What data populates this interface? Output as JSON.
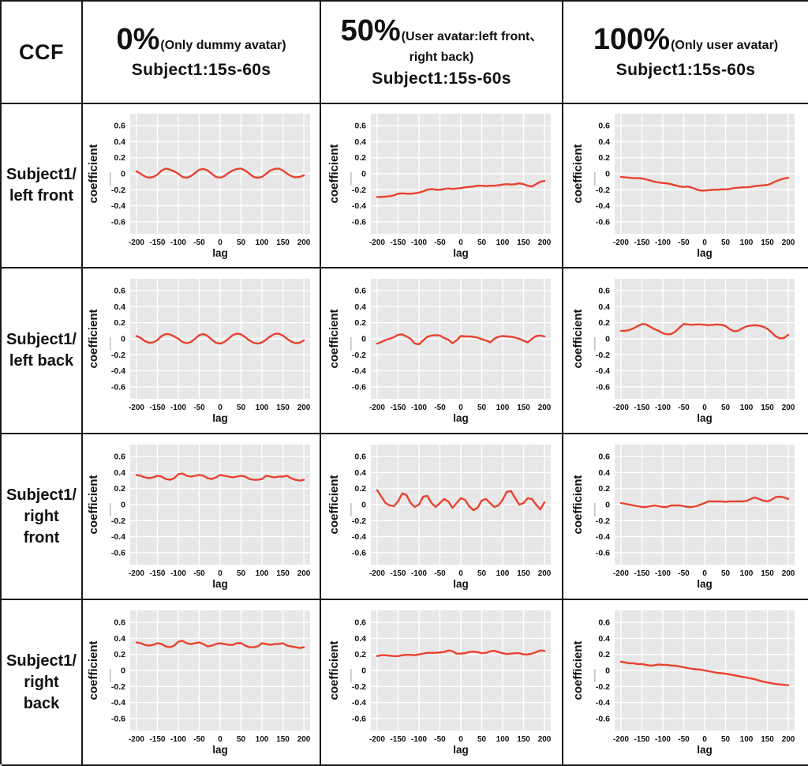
{
  "table": {
    "corner_label": "CCF",
    "columns": [
      {
        "percent": "0%",
        "condition_lines": [
          "(Only dummy avatar)"
        ],
        "subtitle": "Subject1:15s-60s"
      },
      {
        "percent": "50%",
        "condition_lines": [
          "(User avatar:left front、",
          "right back)"
        ],
        "subtitle": "Subject1:15s-60s"
      },
      {
        "percent": "100%",
        "condition_lines": [
          "(Only user avatar)"
        ],
        "subtitle": "Subject1:15s-60s"
      }
    ],
    "rows": [
      {
        "lines": [
          "Subject1/",
          "left front"
        ]
      },
      {
        "lines": [
          "Subject1/",
          "left back"
        ]
      },
      {
        "lines": [
          "Subject1/",
          "right",
          "front"
        ]
      },
      {
        "lines": [
          "Subject1/",
          "right",
          "back"
        ]
      }
    ]
  },
  "chart_data": {
    "type": "line",
    "xlabel": "lag",
    "ylabel": "coefficient",
    "xlim": [
      -215,
      215
    ],
    "ylim": [
      -0.75,
      0.75
    ],
    "xticks": [
      -200,
      -150,
      -100,
      -50,
      0,
      50,
      100,
      150,
      200
    ],
    "yticks": [
      0.6,
      0.4,
      0.2,
      0,
      -0.2,
      -0.4,
      -0.6
    ],
    "grid": true,
    "legend": "none",
    "line_color": "#e8422f",
    "plot_bg": "#e7e7e7",
    "grid_color": "#ffffff",
    "lag_start": -200,
    "lag_step": 10,
    "charts": [
      {
        "row": "Subject1/left front",
        "column": "0% (Only dummy avatar)",
        "values": [
          0.03,
          0.0,
          -0.035,
          -0.05,
          -0.04,
          -0.01,
          0.04,
          0.065,
          0.05,
          0.03,
          0.0,
          -0.04,
          -0.05,
          -0.03,
          0.01,
          0.05,
          0.06,
          0.04,
          0.0,
          -0.04,
          -0.05,
          -0.03,
          0.01,
          0.04,
          0.06,
          0.065,
          0.04,
          0.0,
          -0.04,
          -0.05,
          -0.04,
          0.0,
          0.04,
          0.06,
          0.065,
          0.04,
          0.0,
          -0.03,
          -0.045,
          -0.04,
          -0.02
        ]
      },
      {
        "row": "Subject1/left front",
        "column": "50% (User avatar:left front、right back)",
        "values": [
          -0.29,
          -0.29,
          -0.285,
          -0.28,
          -0.27,
          -0.25,
          -0.245,
          -0.25,
          -0.25,
          -0.245,
          -0.235,
          -0.22,
          -0.2,
          -0.19,
          -0.2,
          -0.2,
          -0.19,
          -0.185,
          -0.19,
          -0.185,
          -0.18,
          -0.17,
          -0.165,
          -0.16,
          -0.15,
          -0.15,
          -0.155,
          -0.15,
          -0.15,
          -0.145,
          -0.135,
          -0.13,
          -0.135,
          -0.13,
          -0.12,
          -0.13,
          -0.15,
          -0.16,
          -0.13,
          -0.1,
          -0.09
        ]
      },
      {
        "row": "Subject1/left front",
        "column": "100% (Only user avatar)",
        "values": [
          -0.04,
          -0.045,
          -0.05,
          -0.055,
          -0.055,
          -0.06,
          -0.07,
          -0.085,
          -0.1,
          -0.11,
          -0.115,
          -0.12,
          -0.13,
          -0.145,
          -0.16,
          -0.165,
          -0.16,
          -0.175,
          -0.195,
          -0.21,
          -0.21,
          -0.205,
          -0.2,
          -0.2,
          -0.195,
          -0.195,
          -0.19,
          -0.18,
          -0.175,
          -0.17,
          -0.17,
          -0.165,
          -0.155,
          -0.15,
          -0.145,
          -0.14,
          -0.12,
          -0.095,
          -0.075,
          -0.06,
          -0.05
        ]
      },
      {
        "row": "Subject1/left back",
        "column": "0% (Only dummy avatar)",
        "values": [
          0.035,
          0.01,
          -0.03,
          -0.05,
          -0.045,
          -0.015,
          0.035,
          0.06,
          0.055,
          0.03,
          0.0,
          -0.04,
          -0.055,
          -0.04,
          0.0,
          0.045,
          0.06,
          0.035,
          -0.01,
          -0.05,
          -0.06,
          -0.04,
          0.0,
          0.045,
          0.065,
          0.055,
          0.02,
          -0.02,
          -0.05,
          -0.06,
          -0.045,
          -0.01,
          0.03,
          0.06,
          0.065,
          0.04,
          0.0,
          -0.035,
          -0.055,
          -0.05,
          -0.02
        ]
      },
      {
        "row": "Subject1/left back",
        "column": "50% (User avatar:left front、right back)",
        "values": [
          -0.06,
          -0.04,
          -0.015,
          0.0,
          0.02,
          0.05,
          0.055,
          0.03,
          0.0,
          -0.06,
          -0.07,
          -0.02,
          0.025,
          0.04,
          0.045,
          0.04,
          0.01,
          -0.01,
          -0.055,
          -0.02,
          0.035,
          0.03,
          0.03,
          0.025,
          0.015,
          -0.005,
          -0.02,
          -0.045,
          0.0,
          0.025,
          0.035,
          0.03,
          0.025,
          0.015,
          0.0,
          -0.025,
          -0.045,
          0.0,
          0.035,
          0.04,
          0.03
        ]
      },
      {
        "row": "Subject1/left back",
        "column": "100% (Only user avatar)",
        "values": [
          0.1,
          0.1,
          0.11,
          0.13,
          0.16,
          0.185,
          0.18,
          0.15,
          0.12,
          0.1,
          0.07,
          0.055,
          0.06,
          0.09,
          0.14,
          0.185,
          0.18,
          0.175,
          0.18,
          0.18,
          0.175,
          0.17,
          0.175,
          0.18,
          0.175,
          0.16,
          0.12,
          0.095,
          0.1,
          0.13,
          0.155,
          0.165,
          0.17,
          0.165,
          0.15,
          0.125,
          0.08,
          0.03,
          0.005,
          0.01,
          0.05
        ]
      },
      {
        "row": "Subject1/right front",
        "column": "0% (Only dummy avatar)",
        "values": [
          0.37,
          0.36,
          0.34,
          0.33,
          0.34,
          0.36,
          0.35,
          0.32,
          0.31,
          0.33,
          0.38,
          0.39,
          0.36,
          0.35,
          0.36,
          0.37,
          0.36,
          0.33,
          0.32,
          0.34,
          0.37,
          0.36,
          0.35,
          0.34,
          0.35,
          0.36,
          0.35,
          0.32,
          0.31,
          0.31,
          0.32,
          0.36,
          0.35,
          0.34,
          0.35,
          0.35,
          0.36,
          0.33,
          0.31,
          0.3,
          0.31
        ]
      },
      {
        "row": "Subject1/right front",
        "column": "50% (User avatar:left front、right back)",
        "values": [
          0.18,
          0.1,
          0.02,
          -0.01,
          -0.02,
          0.04,
          0.14,
          0.12,
          0.02,
          -0.03,
          0.0,
          0.1,
          0.11,
          0.02,
          -0.03,
          0.02,
          0.07,
          0.04,
          -0.04,
          0.02,
          0.08,
          0.06,
          -0.02,
          -0.07,
          -0.04,
          0.05,
          0.07,
          0.02,
          -0.03,
          -0.01,
          0.06,
          0.16,
          0.17,
          0.08,
          0.0,
          0.02,
          0.08,
          0.07,
          0.0,
          -0.06,
          0.03
        ]
      },
      {
        "row": "Subject1/right front",
        "column": "100% (Only user avatar)",
        "values": [
          0.02,
          0.01,
          0.0,
          -0.01,
          -0.02,
          -0.03,
          -0.03,
          -0.02,
          -0.01,
          -0.02,
          -0.03,
          -0.03,
          -0.01,
          -0.01,
          -0.01,
          -0.02,
          -0.03,
          -0.03,
          -0.02,
          0.0,
          0.02,
          0.04,
          0.04,
          0.04,
          0.04,
          0.035,
          0.04,
          0.04,
          0.04,
          0.04,
          0.045,
          0.07,
          0.09,
          0.07,
          0.05,
          0.04,
          0.06,
          0.095,
          0.1,
          0.09,
          0.07
        ]
      },
      {
        "row": "Subject1/right back",
        "column": "0% (Only dummy avatar)",
        "values": [
          0.35,
          0.34,
          0.32,
          0.31,
          0.32,
          0.34,
          0.33,
          0.3,
          0.29,
          0.31,
          0.36,
          0.37,
          0.34,
          0.33,
          0.34,
          0.35,
          0.33,
          0.3,
          0.31,
          0.33,
          0.34,
          0.33,
          0.32,
          0.32,
          0.34,
          0.34,
          0.31,
          0.29,
          0.29,
          0.3,
          0.34,
          0.33,
          0.32,
          0.33,
          0.33,
          0.34,
          0.31,
          0.3,
          0.29,
          0.28,
          0.29
        ]
      },
      {
        "row": "Subject1/right back",
        "column": "50% (User avatar:left front、right back)",
        "values": [
          0.18,
          0.19,
          0.19,
          0.185,
          0.18,
          0.18,
          0.19,
          0.195,
          0.195,
          0.19,
          0.2,
          0.21,
          0.22,
          0.22,
          0.22,
          0.225,
          0.23,
          0.25,
          0.24,
          0.21,
          0.21,
          0.215,
          0.23,
          0.235,
          0.23,
          0.215,
          0.22,
          0.24,
          0.245,
          0.23,
          0.215,
          0.205,
          0.21,
          0.215,
          0.215,
          0.2,
          0.2,
          0.21,
          0.23,
          0.25,
          0.245
        ]
      },
      {
        "row": "Subject1/right back",
        "column": "100% (Only user avatar)",
        "values": [
          0.11,
          0.1,
          0.09,
          0.09,
          0.08,
          0.08,
          0.07,
          0.06,
          0.065,
          0.075,
          0.07,
          0.07,
          0.06,
          0.06,
          0.05,
          0.04,
          0.03,
          0.02,
          0.015,
          0.01,
          0.0,
          -0.01,
          -0.02,
          -0.03,
          -0.035,
          -0.04,
          -0.05,
          -0.06,
          -0.07,
          -0.08,
          -0.09,
          -0.1,
          -0.11,
          -0.125,
          -0.14,
          -0.15,
          -0.16,
          -0.17,
          -0.175,
          -0.18,
          -0.185
        ]
      }
    ]
  }
}
